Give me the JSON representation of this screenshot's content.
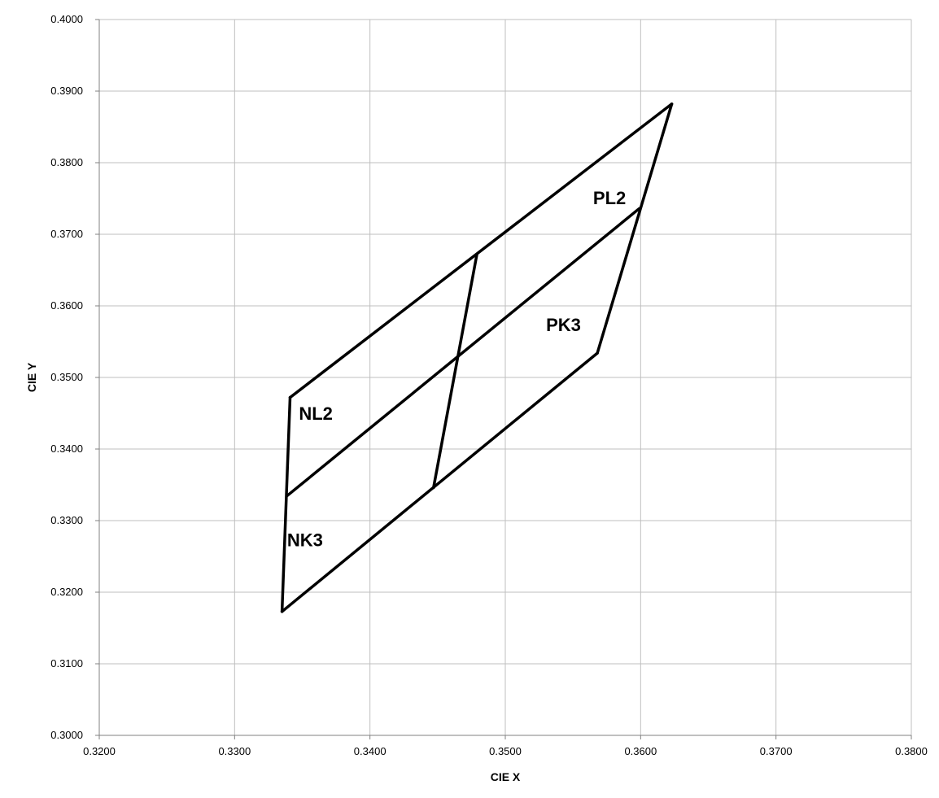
{
  "chart_data": {
    "type": "line",
    "title": "",
    "xlabel": "CIE X",
    "ylabel": "CIE Y",
    "xlim": [
      0.32,
      0.38
    ],
    "ylim": [
      0.3,
      0.4
    ],
    "x_ticks": [
      "0.3200",
      "0.3300",
      "0.3400",
      "0.3500",
      "0.3600",
      "0.3700",
      "0.3800"
    ],
    "y_ticks": [
      "0.3000",
      "0.3100",
      "0.3200",
      "0.3300",
      "0.3400",
      "0.3500",
      "0.3600",
      "0.3700",
      "0.3800",
      "0.3900",
      "0.4000"
    ],
    "grid": true,
    "legend": "none",
    "line_color": "#000000",
    "grid_color": "#bfbfbf",
    "segments": [
      {
        "x": [
          0.3341,
          0.3623
        ],
        "y": [
          0.3472,
          0.3882
        ]
      },
      {
        "x": [
          0.3341,
          0.3335
        ],
        "y": [
          0.3472,
          0.3173
        ]
      },
      {
        "x": [
          0.3335,
          0.3568
        ],
        "y": [
          0.3173,
          0.3534
        ]
      },
      {
        "x": [
          0.3568,
          0.3623
        ],
        "y": [
          0.3534,
          0.3882
        ]
      },
      {
        "x": [
          0.3339,
          0.3599
        ],
        "y": [
          0.3335,
          0.3736
        ]
      },
      {
        "x": [
          0.3479,
          0.3447
        ],
        "y": [
          0.3672,
          0.3346
        ]
      }
    ],
    "regions": [
      {
        "label": "PL2",
        "x": 0.3577,
        "y": 0.3742
      },
      {
        "label": "PK3",
        "x": 0.3543,
        "y": 0.3565
      },
      {
        "label": "NL2",
        "x": 0.336,
        "y": 0.3441
      },
      {
        "label": "NK3",
        "x": 0.3352,
        "y": 0.3264
      }
    ]
  }
}
